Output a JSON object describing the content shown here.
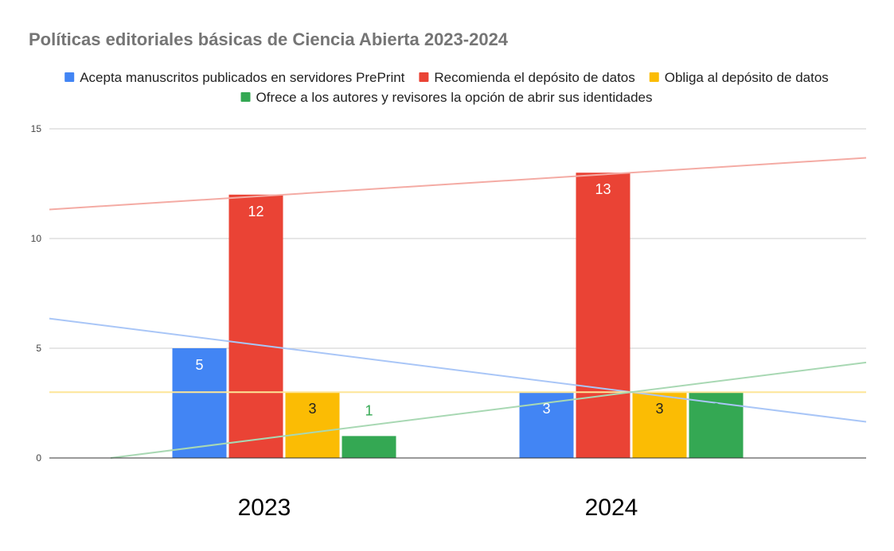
{
  "chart_data": {
    "type": "bar",
    "title": "Políticas editoriales básicas de Ciencia Abierta 2023-2024",
    "categories": [
      "2023",
      "2024"
    ],
    "series": [
      {
        "name": "Acepta manuscritos publicados en servidores PrePrint",
        "values": [
          5,
          3
        ],
        "color": "#4285F4",
        "trendline_color": "#A9C6F7",
        "label_color": "#ffffff"
      },
      {
        "name": "Recomienda el depósito de datos",
        "values": [
          12,
          13
        ],
        "color": "#EA4335",
        "trendline_color": "#F4ABA4",
        "label_color": "#ffffff"
      },
      {
        "name": "Obliga al depósito de datos",
        "values": [
          3,
          3
        ],
        "color": "#FBBC04",
        "trendline_color": "#FDE697",
        "label_color": "#222222"
      },
      {
        "name": "Ofrece a los autores y revisores la opción de abrir sus identidades",
        "values": [
          1,
          3
        ],
        "color": "#34A853",
        "trendline_color": "#A8D8B3",
        "label_color": "#34A853"
      }
    ],
    "yticks": [
      0,
      5,
      10,
      15
    ],
    "ylim": [
      0,
      15
    ],
    "grid": true,
    "legend": "top",
    "trendlines": true,
    "xlabel": "",
    "ylabel": ""
  }
}
